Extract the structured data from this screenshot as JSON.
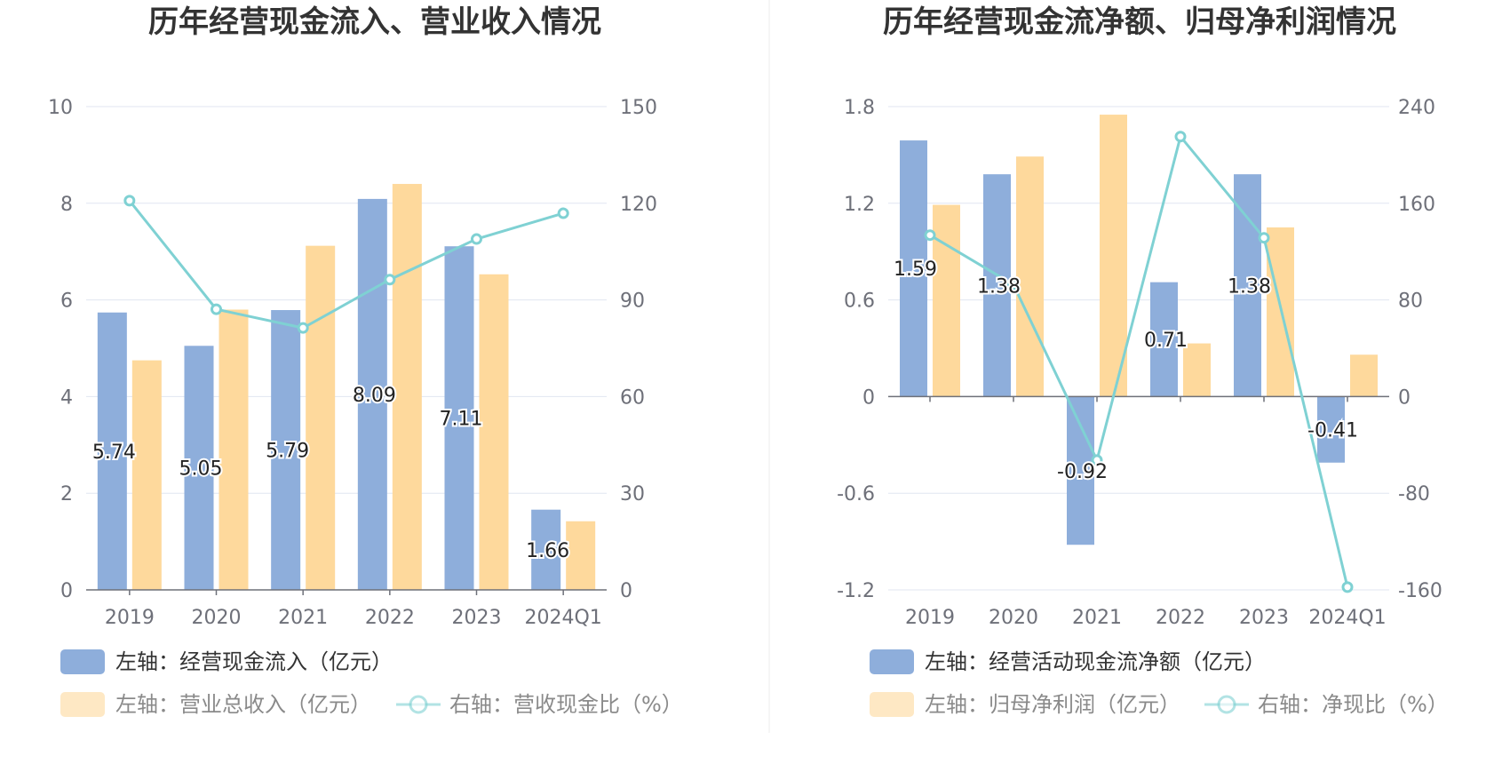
{
  "colors": {
    "bar_primary": "#8eaedb",
    "bar_secondary": "#fed99c",
    "line": "#7fd1d3",
    "grid": "#e0e6f1",
    "axis": "#6e7079",
    "divider": "#eeeeee"
  },
  "chart_data": [
    {
      "type": "bar",
      "title": "历年经营现金流入、营业收入情况",
      "categories": [
        "2019",
        "2020",
        "2021",
        "2022",
        "2023",
        "2024Q1"
      ],
      "y_left": {
        "min": 0,
        "max": 10,
        "ticks": [
          "0",
          "2",
          "4",
          "6",
          "8",
          "10"
        ]
      },
      "y_right": {
        "min": 0,
        "max": 150,
        "ticks": [
          "0",
          "30",
          "60",
          "90",
          "120",
          "150"
        ]
      },
      "grid": true,
      "series": [
        {
          "name": "左轴：经营现金流入（亿元）",
          "kind": "bar",
          "axis": "left",
          "color": "#8eaedb",
          "values": [
            5.74,
            5.05,
            5.79,
            8.09,
            7.11,
            1.66
          ],
          "labels": [
            "5.74",
            "5.05",
            "5.79",
            "8.09",
            "7.11",
            "1.66"
          ]
        },
        {
          "name": "左轴：营业总收入（亿元）",
          "kind": "bar",
          "axis": "left",
          "color": "#fed99c",
          "values": [
            4.75,
            5.8,
            7.12,
            8.4,
            6.53,
            1.42
          ]
        },
        {
          "name": "右轴：营收现金比（%）",
          "kind": "line",
          "axis": "right",
          "color": "#7fd1d3",
          "values": [
            120.8,
            87.1,
            81.3,
            96.3,
            108.9,
            116.9
          ]
        }
      ],
      "legend_position": "bottom-left"
    },
    {
      "type": "bar",
      "title": "历年经营现金流净额、归母净利润情况",
      "categories": [
        "2019",
        "2020",
        "2021",
        "2022",
        "2023",
        "2024Q1"
      ],
      "y_left": {
        "min": -1.2,
        "max": 1.8,
        "ticks": [
          "-1.2",
          "-0.6",
          "0",
          "0.6",
          "1.2",
          "1.8"
        ]
      },
      "y_right": {
        "min": -160,
        "max": 240,
        "ticks": [
          "-160",
          "-80",
          "0",
          "80",
          "160",
          "240"
        ]
      },
      "grid": true,
      "series": [
        {
          "name": "左轴：经营活动现金流净额（亿元）",
          "kind": "bar",
          "axis": "left",
          "color": "#8eaedb",
          "values": [
            1.59,
            1.38,
            -0.92,
            0.71,
            1.38,
            -0.41
          ],
          "labels": [
            "1.59",
            "1.38",
            "-0.92",
            "0.71",
            "1.38",
            "-0.41"
          ]
        },
        {
          "name": "左轴：归母净利润（亿元）",
          "kind": "bar",
          "axis": "left",
          "color": "#fed99c",
          "values": [
            1.19,
            1.49,
            1.75,
            0.33,
            1.05,
            0.26
          ]
        },
        {
          "name": "右轴：净现比（%）",
          "kind": "line",
          "axis": "right",
          "color": "#7fd1d3",
          "values": [
            133.6,
            92.6,
            -52.6,
            215.2,
            131.4,
            -157.7
          ]
        }
      ],
      "legend_position": "bottom-left"
    }
  ]
}
